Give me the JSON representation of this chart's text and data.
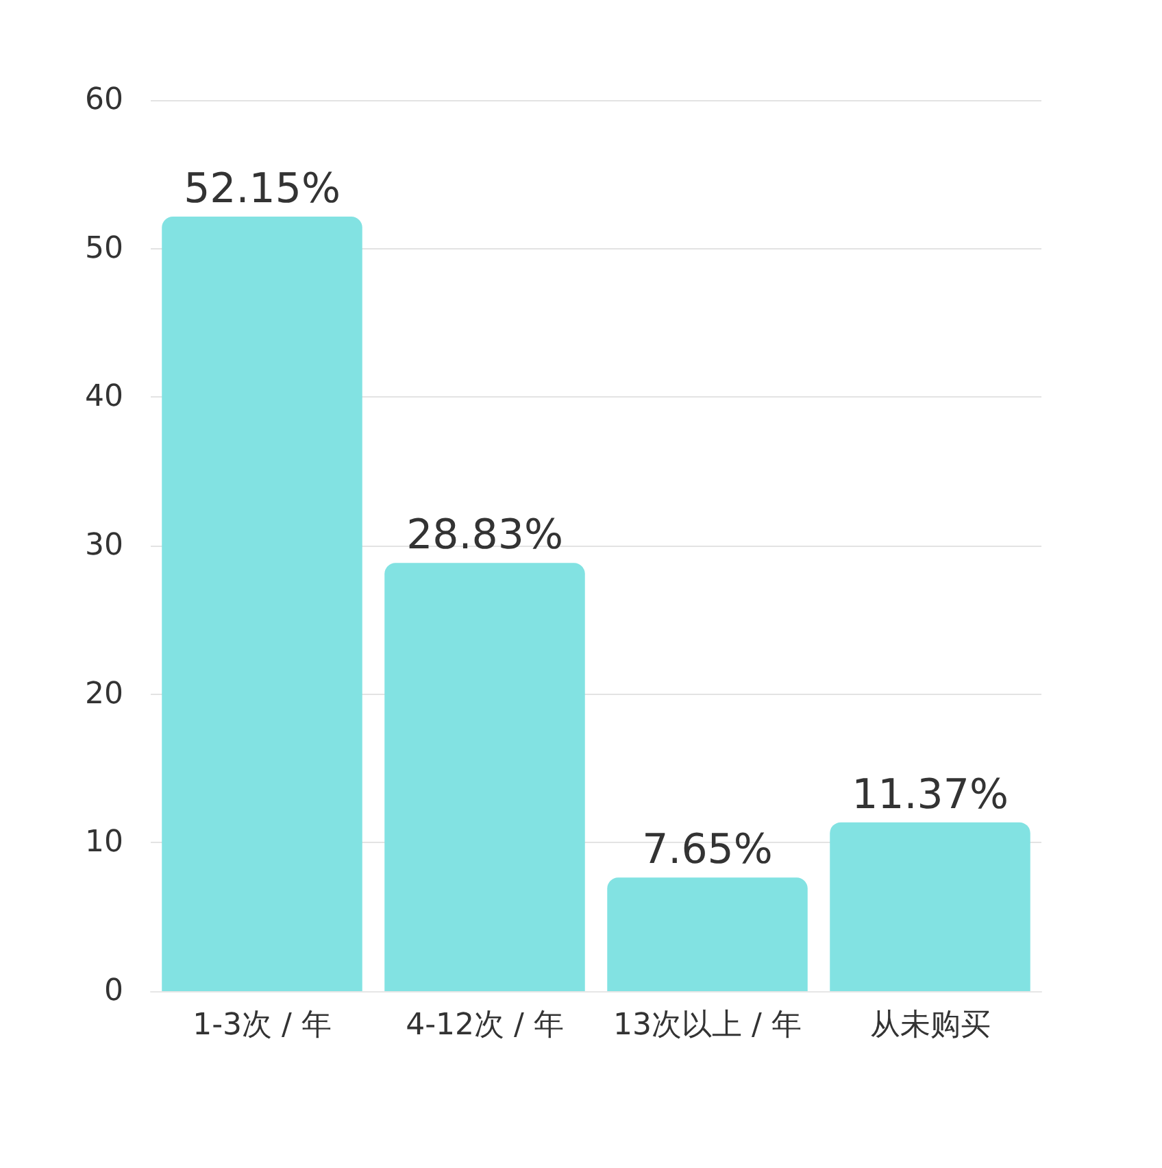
{
  "chart_data": {
    "type": "bar",
    "categories": [
      "1-3次 / 年",
      "4-12次 / 年",
      "13次以上 / 年",
      "从未购买"
    ],
    "values": [
      52.15,
      28.83,
      7.65,
      11.37
    ],
    "value_labels": [
      "52.15%",
      "28.83%",
      "7.65%",
      "11.37%"
    ],
    "color": "#82e2e2",
    "ylim": [
      0,
      60
    ],
    "yticks": [
      0,
      10,
      20,
      30,
      40,
      50,
      60
    ],
    "grid": "y"
  }
}
